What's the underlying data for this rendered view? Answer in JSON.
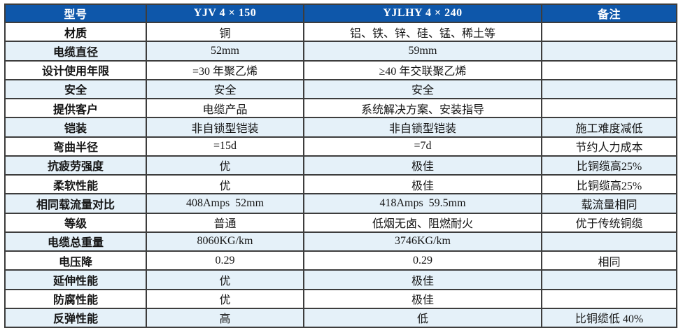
{
  "table": {
    "columns": [
      "型号",
      "YJV 4 × 150",
      "YJLHY 4 × 240",
      "备注"
    ],
    "colors": {
      "header_bg": "#0e57aa",
      "header_text": "#ffffff",
      "row_alt_bg": "#e5f1f9",
      "border": "#3d3d3d"
    },
    "rows": [
      {
        "label": "材质",
        "yjv": "铜",
        "yjlhy": "铝、铁、锌、硅、锰、稀土等",
        "note": ""
      },
      {
        "label": "电缆直径",
        "yjv": "52mm",
        "yjlhy": "59mm",
        "note": ""
      },
      {
        "label": "设计使用年限",
        "yjv": "=30 年聚乙烯",
        "yjlhy": "≥40 年交联聚乙烯",
        "note": ""
      },
      {
        "label": "安全",
        "yjv": "安全",
        "yjlhy": "安全",
        "note": ""
      },
      {
        "label": "提供客户",
        "yjv": "电缆产品",
        "yjlhy": "系统解决方案、安装指导",
        "note": ""
      },
      {
        "label": "铠装",
        "yjv": "非自锁型铠装",
        "yjlhy": "非自锁型铠装",
        "note": "施工难度减低"
      },
      {
        "label": "弯曲半径",
        "yjv": "=15d",
        "yjlhy": "=7d",
        "note": "节约人力成本"
      },
      {
        "label": "抗疲劳强度",
        "yjv": "优",
        "yjlhy": "极佳",
        "note": "比铜缆高25%"
      },
      {
        "label": "柔软性能",
        "yjv": "优",
        "yjlhy": "极佳",
        "note": "比铜缆高25%"
      },
      {
        "label": "相同载流量对比",
        "yjv": "408Amps  52mm",
        "yjlhy": "418Amps  59.5mm",
        "note": "载流量相同"
      },
      {
        "label": "等级",
        "yjv": "普通",
        "yjlhy": "低烟无卤、阻燃耐火",
        "note": "优于传统铜缆"
      },
      {
        "label": "电缆总重量",
        "yjv": "8060KG/km",
        "yjlhy": "3746KG/km",
        "note": ""
      },
      {
        "label": "电压降",
        "yjv": "0.29",
        "yjlhy": "0.29",
        "note": "相同"
      },
      {
        "label": "延伸性能",
        "yjv": "优",
        "yjlhy": "极佳",
        "note": ""
      },
      {
        "label": "防腐性能",
        "yjv": "优",
        "yjlhy": "极佳",
        "note": ""
      },
      {
        "label": "反弹性能",
        "yjv": "高",
        "yjlhy": "低",
        "note": "比铜缆低 40%"
      }
    ]
  },
  "chart_data": {
    "type": "table",
    "title": "",
    "columns": [
      "型号",
      "YJV 4 × 150",
      "YJLHY 4 × 240",
      "备注"
    ],
    "rows": [
      [
        "材质",
        "铜",
        "铝、铁、锌、硅、锰、稀土等",
        ""
      ],
      [
        "电缆直径",
        "52mm",
        "59mm",
        ""
      ],
      [
        "设计使用年限",
        "=30 年聚乙烯",
        "≥40 年交联聚乙烯",
        ""
      ],
      [
        "安全",
        "安全",
        "安全",
        ""
      ],
      [
        "提供客户",
        "电缆产品",
        "系统解决方案、安装指导",
        ""
      ],
      [
        "铠装",
        "非自锁型铠装",
        "非自锁型铠装",
        "施工难度减低"
      ],
      [
        "弯曲半径",
        "=15d",
        "=7d",
        "节约人力成本"
      ],
      [
        "抗疲劳强度",
        "优",
        "极佳",
        "比铜缆高25%"
      ],
      [
        "柔软性能",
        "优",
        "极佳",
        "比铜缆高25%"
      ],
      [
        "相同载流量对比",
        "408Amps  52mm",
        "418Amps  59.5mm",
        "载流量相同"
      ],
      [
        "等级",
        "普通",
        "低烟无卤、阻燃耐火",
        "优于传统铜缆"
      ],
      [
        "电缆总重量",
        "8060KG/km",
        "3746KG/km",
        ""
      ],
      [
        "电压降",
        "0.29",
        "0.29",
        "相同"
      ],
      [
        "延伸性能",
        "优",
        "极佳",
        ""
      ],
      [
        "防腐性能",
        "优",
        "极佳",
        ""
      ],
      [
        "反弹性能",
        "高",
        "低",
        "比铜缆低 40%"
      ]
    ]
  }
}
